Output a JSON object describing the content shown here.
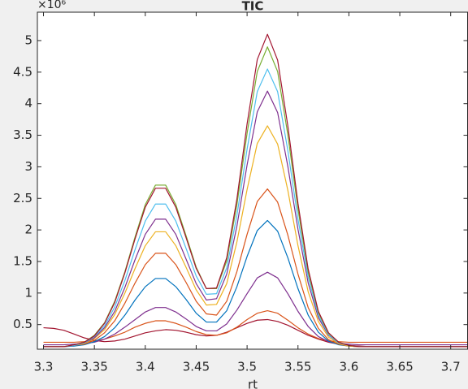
{
  "chart_data": {
    "type": "line",
    "title": "TIC",
    "x_label": "rt",
    "y_exponent_label": "×10⁶",
    "x": [
      3.3,
      3.31,
      3.32,
      3.33,
      3.34,
      3.35,
      3.36,
      3.37,
      3.38,
      3.39,
      3.4,
      3.41,
      3.42,
      3.43,
      3.44,
      3.45,
      3.46,
      3.47,
      3.48,
      3.49,
      3.5,
      3.51,
      3.52,
      3.53,
      3.54,
      3.55,
      3.56,
      3.57,
      3.58,
      3.59,
      3.6,
      3.61,
      3.62,
      3.63,
      3.64,
      3.65,
      3.66,
      3.67,
      3.68,
      3.69,
      3.7,
      3.71,
      3.72
    ],
    "series": [
      {
        "color": "#a2142f",
        "values": [
          0.45,
          0.44,
          0.41,
          0.35,
          0.29,
          0.25,
          0.23,
          0.24,
          0.27,
          0.32,
          0.37,
          0.4,
          0.42,
          0.41,
          0.38,
          0.34,
          0.32,
          0.33,
          0.38,
          0.45,
          0.52,
          0.57,
          0.58,
          0.55,
          0.49,
          0.41,
          0.33,
          0.27,
          0.22,
          0.19,
          0.17,
          0.16,
          0.15,
          0.15,
          0.15,
          0.15,
          0.15,
          0.15,
          0.15,
          0.15,
          0.15,
          0.15,
          0.15
        ]
      },
      {
        "color": "#d95319",
        "values": [
          0.22,
          0.22,
          0.22,
          0.22,
          0.23,
          0.24,
          0.27,
          0.32,
          0.38,
          0.46,
          0.52,
          0.56,
          0.56,
          0.52,
          0.46,
          0.39,
          0.34,
          0.33,
          0.37,
          0.46,
          0.58,
          0.68,
          0.72,
          0.68,
          0.57,
          0.45,
          0.35,
          0.28,
          0.24,
          0.23,
          0.22,
          0.22,
          0.22,
          0.22,
          0.22,
          0.22,
          0.22,
          0.22,
          0.22,
          0.22,
          0.22,
          0.22,
          0.22
        ]
      },
      {
        "color": "#7e2f8e",
        "values": [
          0.18,
          0.18,
          0.18,
          0.19,
          0.2,
          0.22,
          0.27,
          0.35,
          0.46,
          0.58,
          0.7,
          0.77,
          0.77,
          0.7,
          0.59,
          0.47,
          0.4,
          0.4,
          0.51,
          0.73,
          0.99,
          1.24,
          1.33,
          1.24,
          0.99,
          0.71,
          0.47,
          0.31,
          0.23,
          0.2,
          0.19,
          0.18,
          0.18,
          0.18,
          0.18,
          0.18,
          0.18,
          0.18,
          0.18,
          0.18,
          0.18,
          0.18,
          0.18
        ]
      },
      {
        "color": "#0072bd",
        "values": [
          0.15,
          0.15,
          0.15,
          0.16,
          0.18,
          0.23,
          0.31,
          0.45,
          0.65,
          0.89,
          1.1,
          1.23,
          1.23,
          1.1,
          0.9,
          0.68,
          0.54,
          0.54,
          0.72,
          1.1,
          1.58,
          1.99,
          2.15,
          1.98,
          1.56,
          1.07,
          0.65,
          0.38,
          0.24,
          0.18,
          0.16,
          0.15,
          0.15,
          0.15,
          0.15,
          0.15,
          0.15,
          0.15,
          0.15,
          0.15,
          0.15,
          0.15,
          0.15
        ]
      },
      {
        "color": "#d95319",
        "values": [
          0.15,
          0.15,
          0.15,
          0.17,
          0.19,
          0.25,
          0.37,
          0.56,
          0.84,
          1.16,
          1.45,
          1.63,
          1.63,
          1.45,
          1.17,
          0.87,
          0.67,
          0.65,
          0.87,
          1.34,
          1.93,
          2.45,
          2.65,
          2.44,
          1.92,
          1.3,
          0.77,
          0.44,
          0.26,
          0.19,
          0.16,
          0.15,
          0.15,
          0.15,
          0.15,
          0.15,
          0.15,
          0.15,
          0.15,
          0.15,
          0.15,
          0.15,
          0.15
        ]
      },
      {
        "color": "#edb120",
        "values": [
          0.15,
          0.15,
          0.15,
          0.17,
          0.2,
          0.28,
          0.42,
          0.66,
          1.0,
          1.39,
          1.75,
          1.97,
          1.97,
          1.75,
          1.41,
          1.05,
          0.81,
          0.82,
          1.15,
          1.81,
          2.64,
          3.37,
          3.65,
          3.36,
          2.63,
          1.75,
          1.02,
          0.55,
          0.3,
          0.2,
          0.16,
          0.15,
          0.15,
          0.15,
          0.15,
          0.15,
          0.15,
          0.15,
          0.15,
          0.15,
          0.15,
          0.15,
          0.15
        ]
      },
      {
        "color": "#7e2f8e",
        "values": [
          0.15,
          0.15,
          0.15,
          0.17,
          0.21,
          0.29,
          0.45,
          0.71,
          1.09,
          1.53,
          1.93,
          2.17,
          2.17,
          1.93,
          1.54,
          1.15,
          0.89,
          0.91,
          1.3,
          2.06,
          3.03,
          3.87,
          4.2,
          3.86,
          3.01,
          2.01,
          1.16,
          0.61,
          0.33,
          0.21,
          0.17,
          0.15,
          0.15,
          0.15,
          0.15,
          0.15,
          0.15,
          0.15,
          0.15,
          0.15,
          0.15,
          0.15,
          0.15
        ]
      },
      {
        "color": "#4dbeee",
        "values": [
          0.15,
          0.15,
          0.15,
          0.17,
          0.21,
          0.31,
          0.48,
          0.78,
          1.2,
          1.69,
          2.14,
          2.41,
          2.41,
          2.14,
          1.71,
          1.27,
          0.98,
          0.99,
          1.4,
          2.23,
          3.28,
          4.19,
          4.55,
          4.19,
          3.26,
          2.17,
          1.25,
          0.65,
          0.34,
          0.21,
          0.17,
          0.15,
          0.15,
          0.15,
          0.15,
          0.15,
          0.15,
          0.15,
          0.15,
          0.15,
          0.15,
          0.15,
          0.15
        ]
      },
      {
        "color": "#77ac30",
        "values": [
          0.15,
          0.15,
          0.15,
          0.18,
          0.22,
          0.33,
          0.53,
          0.87,
          1.34,
          1.89,
          2.4,
          2.71,
          2.71,
          2.4,
          1.91,
          1.41,
          1.07,
          1.07,
          1.51,
          2.4,
          3.53,
          4.51,
          4.9,
          4.51,
          3.51,
          2.33,
          1.33,
          0.69,
          0.36,
          0.22,
          0.17,
          0.15,
          0.15,
          0.15,
          0.15,
          0.15,
          0.15,
          0.15,
          0.15,
          0.15,
          0.15,
          0.15,
          0.15
        ]
      },
      {
        "color": "#a2142f",
        "values": [
          0.15,
          0.15,
          0.15,
          0.18,
          0.22,
          0.32,
          0.52,
          0.85,
          1.32,
          1.86,
          2.36,
          2.66,
          2.66,
          2.36,
          1.88,
          1.39,
          1.07,
          1.08,
          1.56,
          2.49,
          3.68,
          4.7,
          5.1,
          4.69,
          3.65,
          2.42,
          1.38,
          0.71,
          0.37,
          0.22,
          0.17,
          0.15,
          0.15,
          0.15,
          0.15,
          0.15,
          0.15,
          0.15,
          0.15,
          0.15,
          0.15,
          0.15,
          0.15
        ]
      }
    ],
    "xlim": [
      3.294,
      3.717
    ],
    "xticks": [
      3.3,
      3.35,
      3.4,
      3.45,
      3.5,
      3.55,
      3.6,
      3.65,
      3.7
    ],
    "ylim": [
      0.11,
      5.45
    ],
    "yticks": [
      0.5,
      1,
      1.5,
      2,
      2.5,
      3,
      3.5,
      4,
      4.5,
      5
    ],
    "grid": false
  }
}
